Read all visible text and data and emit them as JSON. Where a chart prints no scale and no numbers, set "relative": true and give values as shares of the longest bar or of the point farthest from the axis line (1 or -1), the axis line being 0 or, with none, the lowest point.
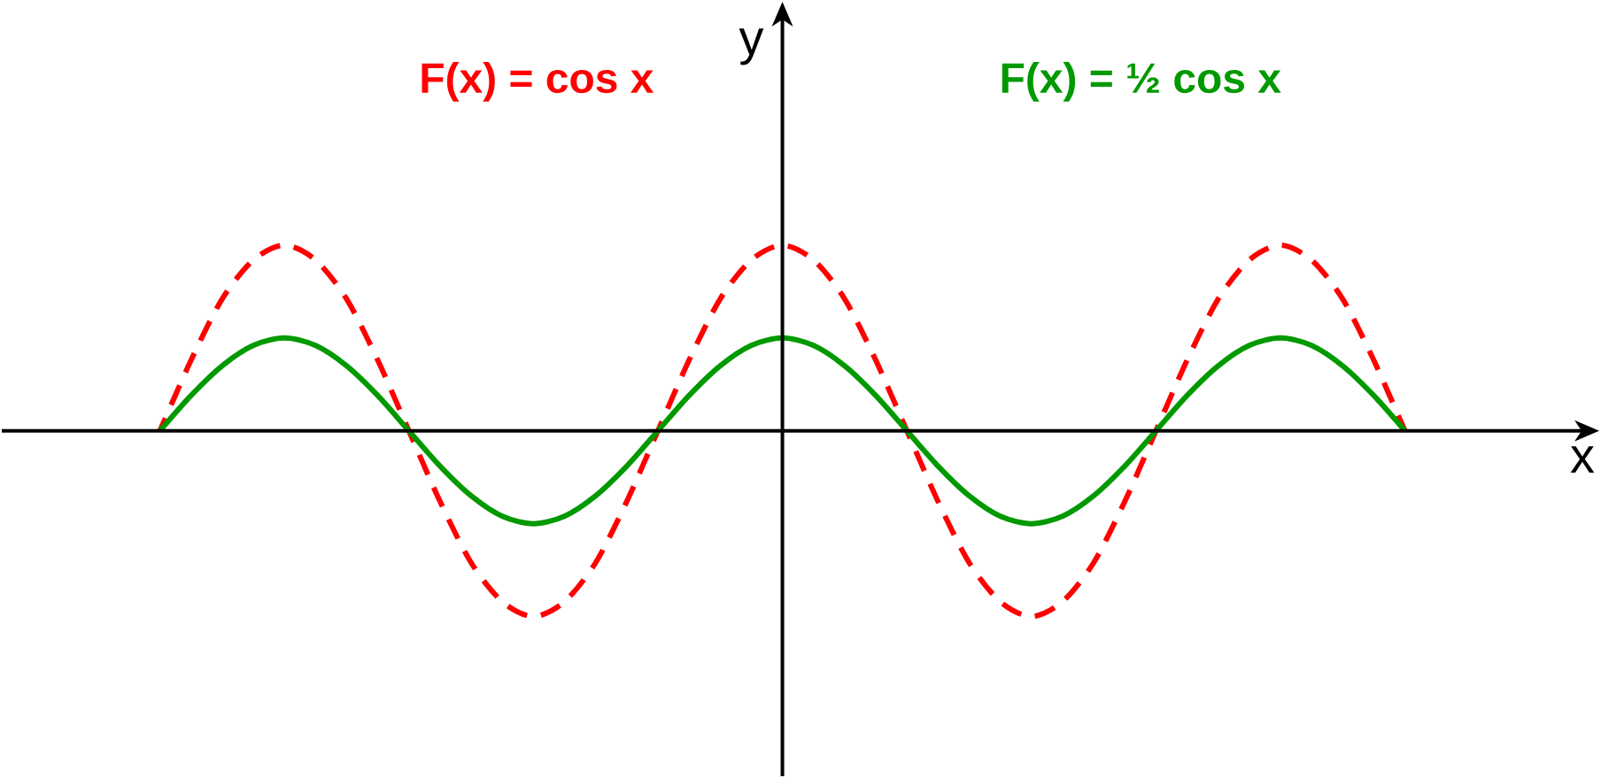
{
  "chart_data": {
    "type": "line",
    "relative": true,
    "xlabel": "x",
    "ylabel": "y",
    "marker": "none",
    "categories": [
      null,
      null,
      null,
      null,
      null,
      null,
      null,
      null,
      null,
      null,
      null,
      null,
      null,
      null,
      null,
      null,
      null,
      null,
      null,
      null,
      null,
      null,
      null,
      null,
      null,
      null,
      null,
      null,
      null,
      null,
      null,
      null,
      null,
      null,
      null,
      null,
      null,
      null,
      null,
      null,
      null
    ],
    "series": [
      {
        "name": "F(x) = cos x",
        "color": "#ff0000",
        "line_style": "dashed",
        "values": [
          0,
          0.38,
          0.71,
          0.92,
          1,
          0.92,
          0.71,
          0.38,
          0,
          -0.38,
          -0.71,
          -0.92,
          -1,
          -0.92,
          -0.71,
          -0.38,
          0,
          0.38,
          0.71,
          0.92,
          1,
          0.92,
          0.71,
          0.38,
          0,
          -0.38,
          -0.71,
          -0.92,
          -1,
          -0.92,
          -0.71,
          -0.38,
          0,
          0.38,
          0.71,
          0.92,
          1,
          0.92,
          0.71,
          0.38,
          0
        ]
      },
      {
        "name": "F(x) = ½ cos x",
        "color": "#009900",
        "line_style": "solid",
        "values": [
          0,
          0.19,
          0.35,
          0.46,
          0.5,
          0.46,
          0.35,
          0.19,
          0,
          -0.19,
          -0.35,
          -0.46,
          -0.5,
          -0.46,
          -0.35,
          -0.19,
          0,
          0.19,
          0.35,
          0.46,
          0.5,
          0.46,
          0.35,
          0.19,
          0,
          -0.19,
          -0.35,
          -0.46,
          -0.5,
          -0.46,
          -0.35,
          -0.19,
          0,
          0.19,
          0.35,
          0.46,
          0.5,
          0.46,
          0.35,
          0.19,
          0
        ]
      }
    ]
  }
}
